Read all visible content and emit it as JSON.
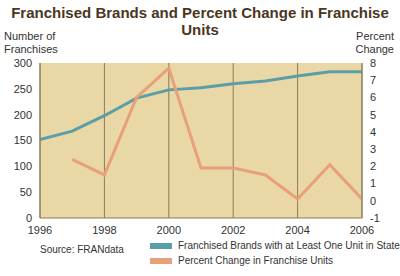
{
  "chart_data": {
    "type": "line",
    "title": "Franchised Brands and Percent Change in Franchise Units",
    "y_label": "Number of Franchises",
    "y2_label": "Percent Change",
    "source": "Source: FRANdata",
    "x": [
      1996,
      1997,
      1998,
      1999,
      2000,
      2001,
      2002,
      2003,
      2004,
      2005,
      2006
    ],
    "xlim": [
      1996,
      2006
    ],
    "xticks": [
      1996,
      1998,
      2000,
      2002,
      2004,
      2006
    ],
    "ylim": [
      0,
      300
    ],
    "yticks": [
      0,
      50,
      100,
      150,
      200,
      250,
      300
    ],
    "y2lim": [
      -1,
      8
    ],
    "y2ticks": [
      -1,
      0,
      1,
      2,
      3,
      4,
      5,
      6,
      7,
      8
    ],
    "grid": true,
    "legend": "bottom",
    "series": [
      {
        "name": "Franchised Brands with at Least One Unit in State",
        "color": "#5b9ea6",
        "values": [
          152,
          168,
          198,
          232,
          248,
          252,
          260,
          265,
          275,
          283,
          283
        ]
      },
      {
        "name": "Percent Change in Franchise Units",
        "color": "#e8a07a",
        "axis": "y2",
        "values": [
          null,
          2.4,
          1.5,
          6.0,
          7.7,
          1.9,
          1.9,
          1.5,
          0.1,
          2.1,
          0.1
        ]
      }
    ]
  }
}
